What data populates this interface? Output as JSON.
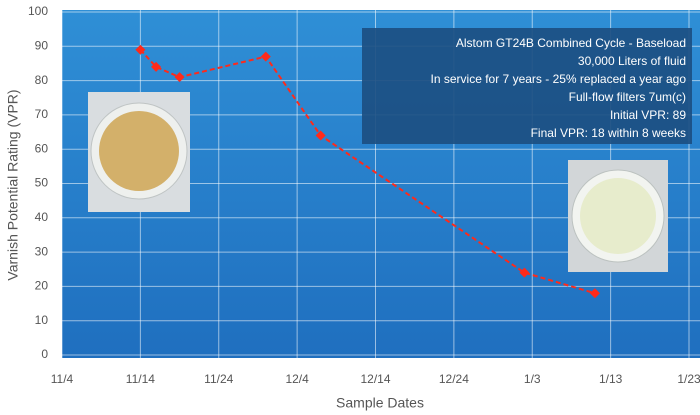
{
  "chart_data": {
    "type": "line",
    "x_label": "Sample Dates",
    "y_label": "Varnish Potential Rating (VPR)",
    "annotation": [
      "Alstom GT24B Combined Cycle - Baseload",
      "30,000 Liters of  fluid",
      "In service for 7 years - 25% replaced  a year ago",
      "Full-flow filters 7um(c)",
      "Initial VPR: 89",
      "Final VPR: 18 within 8 weeks"
    ],
    "x": [
      10,
      12,
      15,
      26,
      33,
      59,
      68
    ],
    "series": [
      {
        "name": "VPR",
        "color": "#ff2a1a",
        "values": [
          89,
          84,
          81,
          87,
          64,
          24,
          18
        ]
      }
    ],
    "xlim": [
      0,
      80
    ],
    "xticks": [
      {
        "value": 0,
        "label": "11/4"
      },
      {
        "value": 10,
        "label": "11/14"
      },
      {
        "value": 20,
        "label": "11/24"
      },
      {
        "value": 30,
        "label": "12/4"
      },
      {
        "value": 40,
        "label": "12/14"
      },
      {
        "value": 50,
        "label": "12/24"
      },
      {
        "value": 60,
        "label": "1/3"
      },
      {
        "value": 70,
        "label": "1/13"
      },
      {
        "value": 80,
        "label": "1/23"
      }
    ],
    "ylim": [
      0,
      100
    ],
    "yticks": [
      0,
      10,
      20,
      30,
      40,
      50,
      60,
      70,
      80,
      90,
      100
    ],
    "grid": true
  }
}
